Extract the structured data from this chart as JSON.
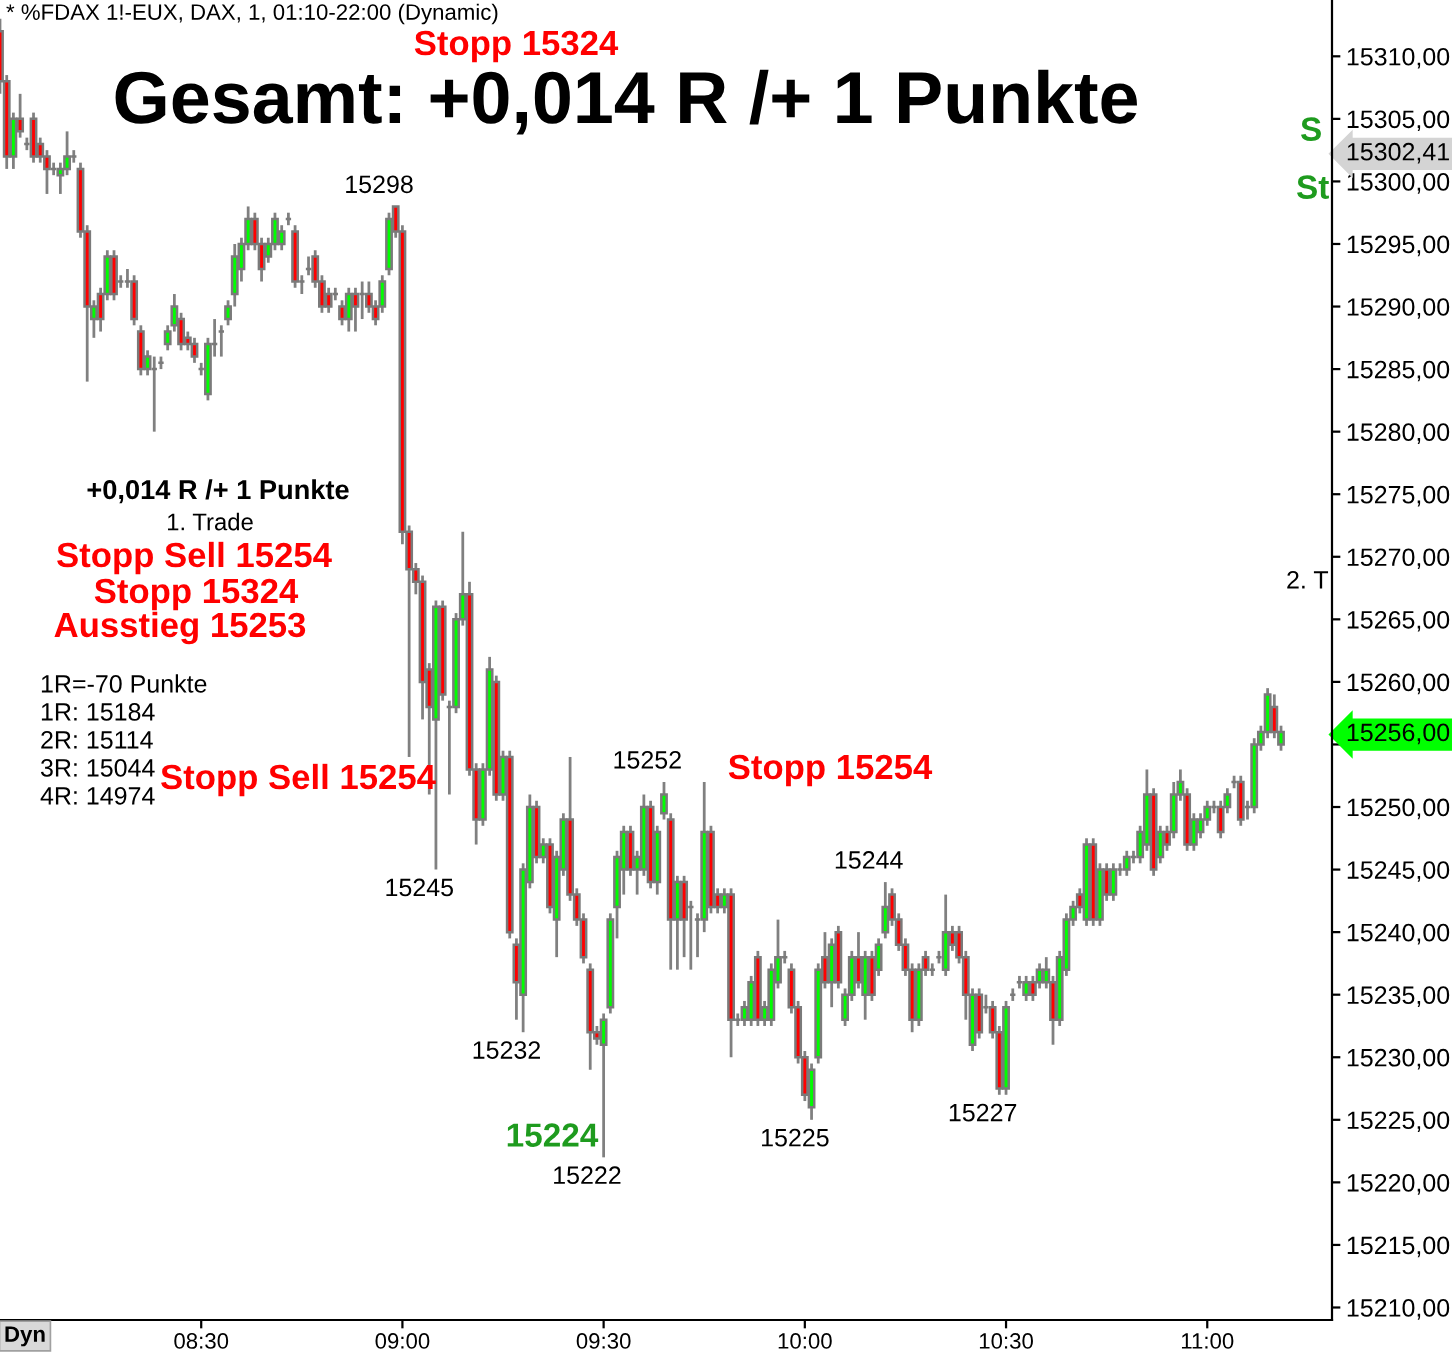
{
  "chart_data": {
    "type": "candlestick",
    "title": "Gesamt: +0,014 R /+ 1 Punkte",
    "subtitle": "* %FDAX 1!-EUX, DAX, 1, 01:10-22:00 (Dynamic)",
    "x": [
      8,
      8.0167,
      8.0333,
      8.05,
      8.0667,
      8.0833,
      8.1,
      8.1167,
      8.1333,
      8.15,
      8.1667,
      8.1833,
      8.2,
      8.2167,
      8.2333,
      8.25,
      8.2667,
      8.2833,
      8.3,
      8.3167,
      8.3333,
      8.35,
      8.3667,
      8.3833,
      8.4,
      8.4167,
      8.4333,
      8.45,
      8.4667,
      8.4833,
      8.5,
      8.5167,
      8.5333,
      8.55,
      8.5667,
      8.5833,
      8.6,
      8.6167,
      8.6333,
      8.65,
      8.6667,
      8.6833,
      8.7,
      8.7167,
      8.7333,
      8.75,
      8.7667,
      8.7833,
      8.8,
      8.8167,
      8.8333,
      8.85,
      8.8667,
      8.8833,
      8.9,
      8.9167,
      8.9333,
      8.95,
      8.9667,
      8.9833,
      9,
      9.0167,
      9.0333,
      9.05,
      9.0667,
      9.0833,
      9.1,
      9.1167,
      9.1333,
      9.15,
      9.1667,
      9.1833,
      9.2,
      9.2167,
      9.2333,
      9.25,
      9.2667,
      9.2833,
      9.3,
      9.3167,
      9.3333,
      9.35,
      9.3667,
      9.3833,
      9.4,
      9.4167,
      9.4333,
      9.45,
      9.4667,
      9.4833,
      9.5,
      9.5167,
      9.5333,
      9.55,
      9.5667,
      9.5833,
      9.6,
      9.6167,
      9.6333,
      9.65,
      9.6667,
      9.6833,
      9.7,
      9.7167,
      9.7333,
      9.75,
      9.7667,
      9.7833,
      9.8,
      9.8167,
      9.8333,
      9.85,
      9.8667,
      9.8833,
      9.9,
      9.9167,
      9.9333,
      9.95,
      9.9667,
      9.9833,
      10,
      10.0167,
      10.0333,
      10.05,
      10.0667,
      10.0833,
      10.1,
      10.1167,
      10.1333,
      10.15,
      10.1667,
      10.1833,
      10.2,
      10.2167,
      10.2333,
      10.25,
      10.2667,
      10.2833,
      10.3,
      10.3167,
      10.3333,
      10.35,
      10.3667,
      10.3833,
      10.4,
      10.4167,
      10.4333,
      10.45,
      10.4667,
      10.4833,
      10.5,
      10.5167,
      10.5333,
      10.55,
      10.5667,
      10.5833,
      10.6,
      10.6167,
      10.6333,
      10.65,
      10.6667,
      10.6833,
      10.7,
      10.7167,
      10.7333,
      10.75,
      10.7667,
      10.7833,
      10.8,
      10.8167,
      10.8333,
      10.85,
      10.8667,
      10.8833,
      10.9,
      10.9167,
      10.9333,
      10.95,
      10.9667,
      10.9833,
      11,
      11.0167,
      11.0333,
      11.05,
      11.0667,
      11.0833,
      11.1,
      11.1167,
      11.1333,
      11.15,
      11.1667,
      11.1833
    ],
    "ohlc": [
      [
        15312,
        15313,
        15307,
        15308
      ],
      [
        15308,
        15308.5,
        15301,
        15302
      ],
      [
        15302,
        15305.5,
        15301,
        15305
      ],
      [
        15305,
        15307,
        15303.5,
        15304
      ],
      [
        15303,
        15303.5,
        15302.5,
        15303
      ],
      [
        15305,
        15305.5,
        15301.5,
        15302
      ],
      [
        15303,
        15303.5,
        15301.5,
        15302
      ],
      [
        15302,
        15302.5,
        15299,
        15301
      ],
      [
        15301,
        15301.5,
        15300.5,
        15301
      ],
      [
        15300.5,
        15301.5,
        15299,
        15301
      ],
      [
        15301,
        15304,
        15300.5,
        15302
      ],
      [
        15302,
        15302.5,
        15301.5,
        15302
      ],
      [
        15301,
        15301.5,
        15295.5,
        15296
      ],
      [
        15296,
        15296.5,
        15284,
        15290
      ],
      [
        15289,
        15290.5,
        15287.5,
        15290
      ],
      [
        15291,
        15291.5,
        15288,
        15289
      ],
      [
        15291,
        15294.5,
        15290.5,
        15294
      ],
      [
        15294,
        15294.5,
        15290.5,
        15291
      ],
      [
        15292,
        15292.5,
        15291.5,
        15292
      ],
      [
        15292,
        15293,
        15291.5,
        15292
      ],
      [
        15292,
        15292.5,
        15288.5,
        15289
      ],
      [
        15288,
        15288.5,
        15284.5,
        15285
      ],
      [
        15285,
        15286.5,
        15284.5,
        15286
      ],
      [
        15285,
        15286,
        15280,
        15285
      ],
      [
        15285.5,
        15286,
        15285,
        15285.5
      ],
      [
        15287,
        15288.5,
        15286.5,
        15288
      ],
      [
        15288.5,
        15291,
        15288,
        15290
      ],
      [
        15289,
        15289.5,
        15286.5,
        15287
      ],
      [
        15287.5,
        15288,
        15286.5,
        15287
      ],
      [
        15287,
        15287.5,
        15285.5,
        15286
      ],
      [
        15285,
        15285.5,
        15284.5,
        15285
      ],
      [
        15283,
        15287.5,
        15282.5,
        15287
      ],
      [
        15287,
        15289,
        15286,
        15287
      ],
      [
        15288,
        15288.5,
        15286,
        15288
      ],
      [
        15289,
        15290.5,
        15288.5,
        15290
      ],
      [
        15291,
        15295,
        15290,
        15294
      ],
      [
        15293,
        15295.5,
        15292,
        15295
      ],
      [
        15295,
        15298,
        15294.5,
        15297
      ],
      [
        15297,
        15297.5,
        15294.5,
        15295
      ],
      [
        15295,
        15295.5,
        15292,
        15293
      ],
      [
        15294,
        15295.5,
        15293.5,
        15295
      ],
      [
        15295,
        15297.5,
        15294.5,
        15297
      ],
      [
        15295,
        15296.5,
        15294.5,
        15296
      ],
      [
        15297,
        15297.5,
        15296.5,
        15297
      ],
      [
        15296,
        15296.5,
        15291.5,
        15292
      ],
      [
        15292,
        15292.5,
        15291,
        15292
      ],
      [
        15293,
        15294,
        15292.5,
        15293
      ],
      [
        15294,
        15294.5,
        15291.5,
        15292
      ],
      [
        15292,
        15292.5,
        15289.5,
        15290
      ],
      [
        15291,
        15291.5,
        15289.5,
        15290
      ],
      [
        15291,
        15291.5,
        15290.5,
        15291
      ],
      [
        15290,
        15290.5,
        15288.5,
        15289
      ],
      [
        15289,
        15291.5,
        15288,
        15291
      ],
      [
        15291,
        15291.5,
        15288,
        15290
      ],
      [
        15291,
        15292,
        15289,
        15291
      ],
      [
        15291,
        15292,
        15289.5,
        15290
      ],
      [
        15290,
        15290.5,
        15288.5,
        15289
      ],
      [
        15290,
        15292.5,
        15289.5,
        15292
      ],
      [
        15293,
        15297.5,
        15292.5,
        15297
      ],
      [
        15298,
        15298,
        15295.5,
        15296
      ],
      [
        15296,
        15296.5,
        15271,
        15272
      ],
      [
        15272,
        15272.5,
        15254,
        15269
      ],
      [
        15269,
        15269.5,
        15267,
        15268
      ],
      [
        15268,
        15268.5,
        15257,
        15260
      ],
      [
        15261,
        15261.5,
        15251,
        15258
      ],
      [
        15257,
        15266.5,
        15245,
        15266
      ],
      [
        15266,
        15266.5,
        15258.5,
        15259
      ],
      [
        15258,
        15258.5,
        15251,
        15258
      ],
      [
        15258,
        15265.5,
        15257.5,
        15265
      ],
      [
        15265,
        15272,
        15264.5,
        15267
      ],
      [
        15267,
        15268,
        15252.5,
        15253
      ],
      [
        15253,
        15253.5,
        15247,
        15249
      ],
      [
        15249,
        15253.5,
        15248.5,
        15253
      ],
      [
        15253,
        15262,
        15252.5,
        15261
      ],
      [
        15260,
        15260.5,
        15250.5,
        15251
      ],
      [
        15251,
        15254.5,
        15250.5,
        15254
      ],
      [
        15254,
        15254.5,
        15239.5,
        15240
      ],
      [
        15239,
        15239.5,
        15233,
        15236
      ],
      [
        15235,
        15245.5,
        15232,
        15245
      ],
      [
        15244,
        15251,
        15243.5,
        15250
      ],
      [
        15250,
        15250.5,
        15245.5,
        15246
      ],
      [
        15246,
        15247.5,
        15245.5,
        15247
      ],
      [
        15247,
        15247.5,
        15241.5,
        15242
      ],
      [
        15241,
        15246.5,
        15238,
        15246
      ],
      [
        15245,
        15249.5,
        15244.5,
        15249
      ],
      [
        15249,
        15254,
        15242.5,
        15243
      ],
      [
        15243,
        15243.5,
        15240.5,
        15241
      ],
      [
        15241,
        15241.5,
        15237.5,
        15238
      ],
      [
        15237,
        15237.5,
        15229,
        15232
      ],
      [
        15232,
        15232.5,
        15231,
        15231.5
      ],
      [
        15231,
        15233.5,
        15222,
        15233
      ],
      [
        15234,
        15241.5,
        15233.5,
        15241
      ],
      [
        15242,
        15246.5,
        15239.5,
        15246
      ],
      [
        15245,
        15248.5,
        15243,
        15248
      ],
      [
        15248,
        15248.5,
        15244.5,
        15245
      ],
      [
        15245,
        15246.5,
        15243,
        15246
      ],
      [
        15245,
        15251,
        15244.5,
        15250
      ],
      [
        15250,
        15250.5,
        15243.5,
        15244
      ],
      [
        15244,
        15248.5,
        15243,
        15248
      ],
      [
        15249.5,
        15252,
        15249,
        15251
      ],
      [
        15249,
        15249.5,
        15237,
        15241
      ],
      [
        15241,
        15244.5,
        15237,
        15244
      ],
      [
        15244,
        15244.5,
        15238,
        15241
      ],
      [
        15242,
        15242.5,
        15237,
        15242
      ],
      [
        15241,
        15241.5,
        15238,
        15241
      ],
      [
        15241,
        15252,
        15240,
        15248
      ],
      [
        15248,
        15248.5,
        15241.5,
        15242
      ],
      [
        15243,
        15243.5,
        15241.5,
        15242
      ],
      [
        15242,
        15243.5,
        15241.5,
        15243
      ],
      [
        15243,
        15243.5,
        15230,
        15233
      ],
      [
        15233,
        15233.5,
        15232.5,
        15233
      ],
      [
        15233,
        15234.5,
        15232.5,
        15234
      ],
      [
        15233,
        15236.5,
        15232.5,
        15236
      ],
      [
        15238,
        15238.5,
        15232.5,
        15233
      ],
      [
        15233,
        15234.5,
        15232.5,
        15234
      ],
      [
        15233,
        15237.5,
        15232.5,
        15237
      ],
      [
        15236,
        15241,
        15235.5,
        15238
      ],
      [
        15238,
        15238.5,
        15237.5,
        15238
      ],
      [
        15237,
        15237.5,
        15233.5,
        15234
      ],
      [
        15234,
        15234.5,
        15229.5,
        15230
      ],
      [
        15230,
        15230.5,
        15226.5,
        15227
      ],
      [
        15226,
        15229.5,
        15225,
        15229
      ],
      [
        15230,
        15237.5,
        15229.5,
        15237
      ],
      [
        15238,
        15240,
        15235.5,
        15236
      ],
      [
        15236,
        15239.5,
        15234,
        15239
      ],
      [
        15240,
        15240.5,
        15235.5,
        15236
      ],
      [
        15233,
        15235.5,
        15232.5,
        15235
      ],
      [
        15235,
        15238.5,
        15234.5,
        15238
      ],
      [
        15238,
        15240,
        15235.5,
        15236
      ],
      [
        15235,
        15238.5,
        15233,
        15238
      ],
      [
        15238,
        15238.5,
        15234.5,
        15235
      ],
      [
        15237,
        15239.5,
        15236.5,
        15239
      ],
      [
        15240,
        15244,
        15239.5,
        15242
      ],
      [
        15243,
        15243.5,
        15240.5,
        15241
      ],
      [
        15241,
        15241.5,
        15238.5,
        15239
      ],
      [
        15239,
        15239.5,
        15236.5,
        15237
      ],
      [
        15237,
        15237.5,
        15232,
        15233
      ],
      [
        15233,
        15237.5,
        15232.5,
        15237
      ],
      [
        15238,
        15238.5,
        15236.5,
        15237
      ],
      [
        15237,
        15237.5,
        15236.5,
        15237
      ],
      [
        15238,
        15238.5,
        15237.5,
        15238
      ],
      [
        15237,
        15243,
        15236.5,
        15240
      ],
      [
        15240,
        15240.5,
        15238.5,
        15239
      ],
      [
        15240,
        15240.5,
        15237.5,
        15238
      ],
      [
        15238,
        15238.5,
        15233,
        15235
      ],
      [
        15231,
        15235.5,
        15230.5,
        15235
      ],
      [
        15235,
        15235.5,
        15231.5,
        15232
      ],
      [
        15234,
        15235,
        15233.5,
        15234
      ],
      [
        15234,
        15234.5,
        15231.5,
        15232
      ],
      [
        15232,
        15232.5,
        15227,
        15227.5
      ],
      [
        15227.5,
        15234.5,
        15227,
        15234
      ],
      [
        15235,
        15235.5,
        15234.5,
        15235
      ],
      [
        15236,
        15236.5,
        15235.5,
        15236
      ],
      [
        15235,
        15236.5,
        15234.5,
        15236
      ],
      [
        15236,
        15236.5,
        15234.5,
        15235
      ],
      [
        15236,
        15237.5,
        15235.5,
        15237
      ],
      [
        15236,
        15238,
        15235.5,
        15237
      ],
      [
        15236,
        15236.5,
        15231,
        15233
      ],
      [
        15233,
        15238.5,
        15232.5,
        15238
      ],
      [
        15237,
        15241.5,
        15236.5,
        15241
      ],
      [
        15241,
        15242.5,
        15240.5,
        15242
      ],
      [
        15243,
        15243.5,
        15241.5,
        15242
      ],
      [
        15241,
        15247.5,
        15240.5,
        15247
      ],
      [
        15247,
        15247.5,
        15240.5,
        15241
      ],
      [
        15241,
        15245.5,
        15240.5,
        15245
      ],
      [
        15245,
        15245.5,
        15242.5,
        15243
      ],
      [
        15243,
        15245.5,
        15242.5,
        15245
      ],
      [
        15245,
        15245.5,
        15244.5,
        15245
      ],
      [
        15245,
        15246.5,
        15244.5,
        15246
      ],
      [
        15246,
        15246.5,
        15245.5,
        15246
      ],
      [
        15246,
        15248.5,
        15245.5,
        15248
      ],
      [
        15247,
        15253,
        15246.5,
        15251
      ],
      [
        15251,
        15251.5,
        15244.5,
        15245
      ],
      [
        15246,
        15248.5,
        15245.5,
        15248
      ],
      [
        15248,
        15248.5,
        15246.5,
        15247
      ],
      [
        15248,
        15252,
        15247.5,
        15251
      ],
      [
        15251,
        15253,
        15250.5,
        15252
      ],
      [
        15251,
        15251.5,
        15246.5,
        15247
      ],
      [
        15247,
        15249.5,
        15246.5,
        15249
      ],
      [
        15248,
        15249.5,
        15247.5,
        15249
      ],
      [
        15249,
        15250.5,
        15248.5,
        15250
      ],
      [
        15250,
        15250.5,
        15249.5,
        15250
      ],
      [
        15250,
        15250.5,
        15247.5,
        15248
      ],
      [
        15250,
        15251.5,
        15249.5,
        15251
      ],
      [
        15252,
        15252.5,
        15251.5,
        15252
      ],
      [
        15252,
        15252.5,
        15248.5,
        15249
      ],
      [
        15250,
        15250.5,
        15249,
        15250
      ],
      [
        15250,
        15255.5,
        15249.5,
        15255
      ],
      [
        15255,
        15256.5,
        15254.5,
        15256
      ],
      [
        15256,
        15259.5,
        15255.5,
        15259
      ],
      [
        15258,
        15259,
        15255.5,
        15256
      ],
      [
        15255,
        15256.5,
        15254.5,
        15256
      ]
    ],
    "colors": [
      "#ff0000",
      "#ff0000",
      "#00ff00",
      "#ff0000",
      "#808080",
      "#ff0000",
      "#ff0000",
      "#ff0000",
      "#808080",
      "#00ff00",
      "#00ff00",
      "#808080",
      "#ff0000",
      "#ff0000",
      "#00ff00",
      "#ff0000",
      "#00ff00",
      "#ff0000",
      "#808080",
      "#808080",
      "#ff0000",
      "#ff0000",
      "#00ff00",
      "#808080",
      "#808080",
      "#00ff00",
      "#00ff00",
      "#ff0000",
      "#ff0000",
      "#ff0000",
      "#808080",
      "#00ff00",
      "#808080",
      "#808080",
      "#00ff00",
      "#00ff00",
      "#00ff00",
      "#00ff00",
      "#ff0000",
      "#ff0000",
      "#00ff00",
      "#00ff00",
      "#00ff00",
      "#808080",
      "#ff0000",
      "#808080",
      "#808080",
      "#ff0000",
      "#ff0000",
      "#ff0000",
      "#808080",
      "#ff0000",
      "#00ff00",
      "#ff0000",
      "#808080",
      "#ff0000",
      "#ff0000",
      "#00ff00",
      "#00ff00",
      "#ff0000",
      "#ff0000",
      "#ff0000",
      "#ff0000",
      "#ff0000",
      "#ff0000",
      "#00ff00",
      "#ff0000",
      "#808080",
      "#00ff00",
      "#00ff00",
      "#ff0000",
      "#ff0000",
      "#00ff00",
      "#00ff00",
      "#ff0000",
      "#00ff00",
      "#ff0000",
      "#ff0000",
      "#00ff00",
      "#00ff00",
      "#ff0000",
      "#00ff00",
      "#ff0000",
      "#00ff00",
      "#00ff00",
      "#ff0000",
      "#ff0000",
      "#ff0000",
      "#ff0000",
      "#ff0000",
      "#00ff00",
      "#00ff00",
      "#00ff00",
      "#00ff00",
      "#ff0000",
      "#00ff00",
      "#00ff00",
      "#ff0000",
      "#00ff00",
      "#00ff00",
      "#ff0000",
      "#00ff00",
      "#ff0000",
      "#808080",
      "#808080",
      "#00ff00",
      "#ff0000",
      "#ff0000",
      "#00ff00",
      "#ff0000",
      "#808080",
      "#00ff00",
      "#00ff00",
      "#ff0000",
      "#00ff00",
      "#00ff00",
      "#00ff00",
      "#808080",
      "#ff0000",
      "#ff0000",
      "#ff0000",
      "#00ff00",
      "#00ff00",
      "#ff0000",
      "#00ff00",
      "#ff0000",
      "#00ff00",
      "#00ff00",
      "#ff0000",
      "#00ff00",
      "#ff0000",
      "#00ff00",
      "#00ff00",
      "#ff0000",
      "#ff0000",
      "#ff0000",
      "#ff0000",
      "#00ff00",
      "#ff0000",
      "#808080",
      "#808080",
      "#00ff00",
      "#ff0000",
      "#ff0000",
      "#ff0000",
      "#00ff00",
      "#ff0000",
      "#808080",
      "#ff0000",
      "#ff0000",
      "#00ff00",
      "#808080",
      "#808080",
      "#00ff00",
      "#ff0000",
      "#00ff00",
      "#00ff00",
      "#ff0000",
      "#00ff00",
      "#00ff00",
      "#00ff00",
      "#ff0000",
      "#00ff00",
      "#ff0000",
      "#00ff00",
      "#ff0000",
      "#00ff00",
      "#808080",
      "#00ff00",
      "#808080",
      "#00ff00",
      "#00ff00",
      "#ff0000",
      "#00ff00",
      "#ff0000",
      "#00ff00",
      "#00ff00",
      "#ff0000",
      "#00ff00",
      "#00ff00",
      "#00ff00",
      "#808080",
      "#ff0000",
      "#00ff00",
      "#808080",
      "#ff0000",
      "#808080",
      "#00ff00",
      "#00ff00",
      "#00ff00",
      "#ff0000",
      "#00ff00"
    ],
    "xlim": [
      8.0,
      11.31
    ],
    "xticks": [
      {
        "value": 8.5,
        "label": "08:30"
      },
      {
        "value": 9,
        "label": "09:00"
      },
      {
        "value": 9.5,
        "label": "09:30"
      },
      {
        "value": 10,
        "label": "10:00"
      },
      {
        "value": 10.5,
        "label": "10:30"
      },
      {
        "value": 11,
        "label": "11:00"
      }
    ],
    "ylim": [
      15209,
      15314.5
    ],
    "yticks": [
      {
        "value": 15210,
        "label": "15210,00"
      },
      {
        "value": 15215,
        "label": "15215,00"
      },
      {
        "value": 15220,
        "label": "15220,00"
      },
      {
        "value": 15225,
        "label": "15225,00"
      },
      {
        "value": 15230,
        "label": "15230,00"
      },
      {
        "value": 15235,
        "label": "15235,00"
      },
      {
        "value": 15240,
        "label": "15240,00"
      },
      {
        "value": 15245,
        "label": "15245,00"
      },
      {
        "value": 15250,
        "label": "15250,00"
      },
      {
        "value": 15255,
        "label": null
      },
      {
        "value": 15256,
        "label": "15256,00"
      },
      {
        "value": 15260,
        "label": "15260,00"
      },
      {
        "value": 15265,
        "label": "15265,00"
      },
      {
        "value": 15270,
        "label": "15270,00"
      },
      {
        "value": 15275,
        "label": "15275,00"
      },
      {
        "value": 15280,
        "label": "15280,00"
      },
      {
        "value": 15285,
        "label": "15285,00"
      },
      {
        "value": 15290,
        "label": "15290,00"
      },
      {
        "value": 15295,
        "label": "15295,00"
      },
      {
        "value": 15300,
        "label": "15300,00"
      },
      {
        "value": 15302.41,
        "label": "15302,41"
      },
      {
        "value": 15305,
        "label": "15305,00"
      },
      {
        "value": 15310,
        "label": "15310,00"
      }
    ],
    "annotations": [
      "Stopp 15324",
      {
        "text": "15298",
        "x": 8.9833,
        "y": 15298
      },
      "+0,014 R /+ 1 Punkte",
      "1. Trade",
      "Stopp Sell 15254",
      "Stopp 15324",
      "Ausstieg 15253",
      "1R=-70 Punkte",
      "1R: 15184",
      "2R: 15114",
      "3R: 15044",
      "4R: 14974",
      "Stopp Sell 15254",
      {
        "text": "15245",
        "x": 9.0833,
        "y": 15245
      },
      {
        "text": "15252",
        "x": 9.65,
        "y": 15252
      },
      "Stopp 15254",
      {
        "text": "15244",
        "x": 10.2,
        "y": 15244
      },
      {
        "text": "15232",
        "x": 9.3,
        "y": 15232
      },
      "15224",
      {
        "text": "15222",
        "x": 9.5,
        "y": 15222
      },
      {
        "text": "15225",
        "x": 10.0167,
        "y": 15225
      },
      {
        "text": "15227",
        "x": 10.4833,
        "y": 15227
      },
      "S",
      "St",
      "2. T",
      "Dyn"
    ]
  }
}
